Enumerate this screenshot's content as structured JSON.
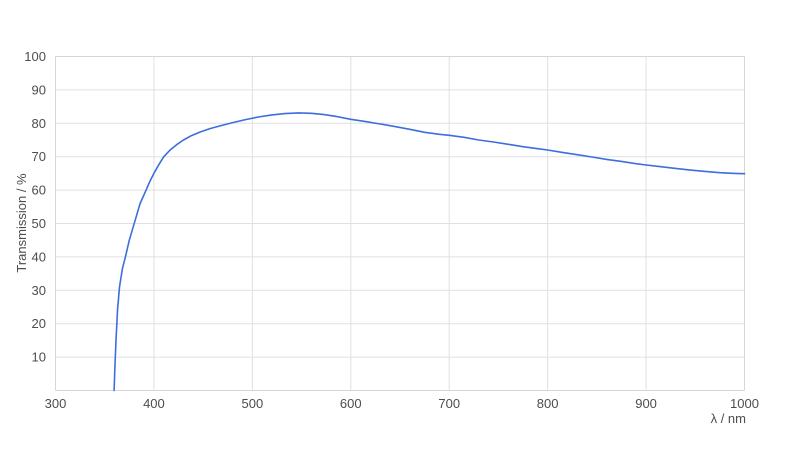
{
  "chart_data": {
    "type": "line",
    "title": "",
    "xlabel": "λ / nm",
    "ylabel": "Transmission / %",
    "xlim": [
      300,
      1000
    ],
    "ylim": [
      0,
      100
    ],
    "x_ticks": [
      300,
      400,
      500,
      600,
      700,
      800,
      900,
      1000
    ],
    "y_ticks": [
      10,
      20,
      30,
      40,
      50,
      60,
      70,
      80,
      90,
      100
    ],
    "grid": true,
    "legend_position": "none",
    "colors": {
      "line": "#3d6edc",
      "grid": "#e0e0e0",
      "border": "#d6d6d6",
      "tick_text": "#4d4d4d",
      "background": "#ffffff"
    },
    "series": [
      {
        "name": "Transmission",
        "points": [
          [
            359.5,
            0
          ],
          [
            360.3,
            7
          ],
          [
            361.5,
            15
          ],
          [
            363,
            24
          ],
          [
            365,
            31
          ],
          [
            368,
            36.5
          ],
          [
            371,
            40
          ],
          [
            375,
            45
          ],
          [
            380.5,
            50.5
          ],
          [
            386,
            56
          ],
          [
            392,
            60
          ],
          [
            396,
            62.7
          ],
          [
            400,
            65
          ],
          [
            405,
            67.6
          ],
          [
            410,
            70
          ],
          [
            416,
            71.9
          ],
          [
            423,
            73.6
          ],
          [
            430,
            75
          ],
          [
            438,
            76.3
          ],
          [
            447,
            77.4
          ],
          [
            457,
            78.4
          ],
          [
            468,
            79.3
          ],
          [
            480,
            80.2
          ],
          [
            493,
            81.1
          ],
          [
            506,
            81.9
          ],
          [
            520,
            82.5
          ],
          [
            533,
            82.9
          ],
          [
            547,
            83.1
          ],
          [
            560,
            83
          ],
          [
            573,
            82.6
          ],
          [
            586,
            82
          ],
          [
            600,
            81.2
          ],
          [
            615,
            80.5
          ],
          [
            630,
            79.8
          ],
          [
            645,
            79
          ],
          [
            660,
            78.2
          ],
          [
            675,
            77.3
          ],
          [
            690,
            76.7
          ],
          [
            700,
            76.4
          ],
          [
            715,
            75.8
          ],
          [
            730,
            75
          ],
          [
            745,
            74.4
          ],
          [
            760,
            73.7
          ],
          [
            775,
            73
          ],
          [
            790,
            72.4
          ],
          [
            800,
            72
          ],
          [
            815,
            71.3
          ],
          [
            830,
            70.6
          ],
          [
            845,
            69.9
          ],
          [
            860,
            69.2
          ],
          [
            875,
            68.6
          ],
          [
            890,
            67.9
          ],
          [
            900,
            67.5
          ],
          [
            915,
            67
          ],
          [
            930,
            66.5
          ],
          [
            945,
            66
          ],
          [
            960,
            65.6
          ],
          [
            975,
            65.2
          ],
          [
            990,
            65
          ],
          [
            1000,
            64.9
          ]
        ]
      }
    ]
  }
}
